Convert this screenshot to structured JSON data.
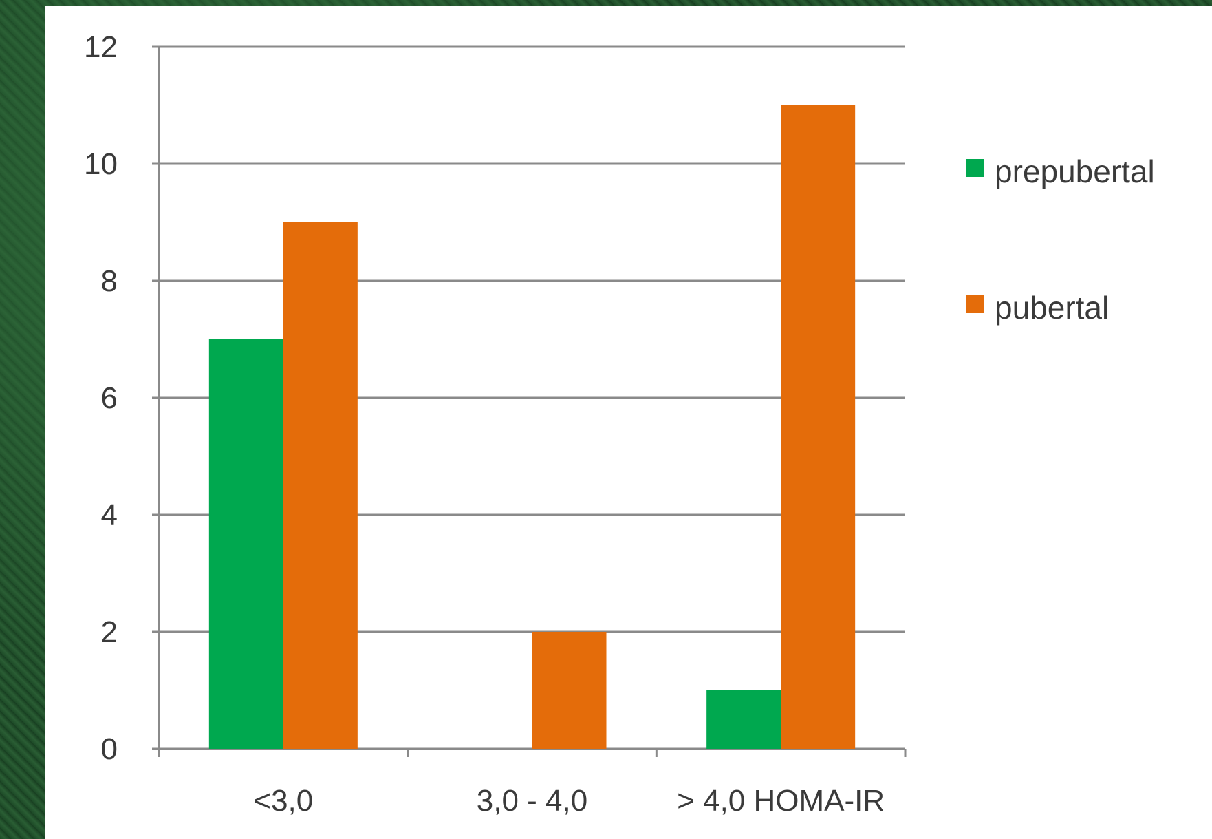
{
  "chart_data": {
    "type": "bar",
    "title": "",
    "xlabel": "",
    "ylabel": "",
    "categories": [
      "<3,0",
      "3,0 - 4,0",
      "> 4,0 HOMA-IR"
    ],
    "series": [
      {
        "name": "prepubertal",
        "values": [
          7,
          0,
          1
        ],
        "color": "#00a84f"
      },
      {
        "name": "pubertal",
        "values": [
          9,
          2,
          11
        ],
        "color": "#e46c0a"
      }
    ],
    "ylim": [
      0,
      12
    ],
    "yticks": [
      "0",
      "2",
      "4",
      "6",
      "8",
      "10",
      "12"
    ],
    "grid": true,
    "legend_position": "right"
  }
}
